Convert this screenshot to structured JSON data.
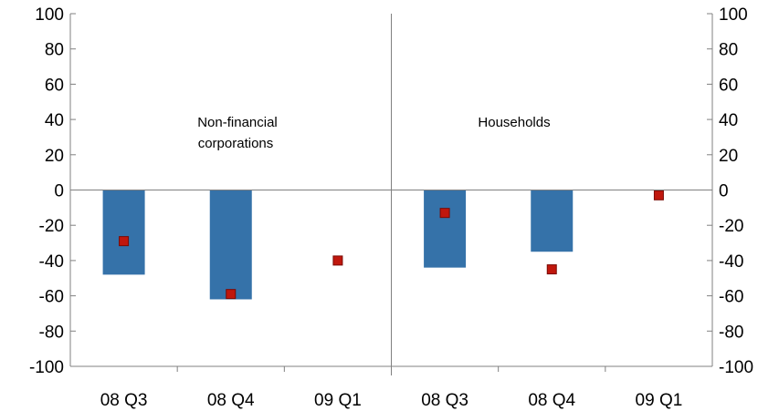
{
  "chart_data": {
    "type": "bar",
    "categories": [
      "08 Q3",
      "08 Q4",
      "09 Q1",
      "08 Q3",
      "08 Q4",
      "09 Q1"
    ],
    "series": [
      {
        "type": "bar",
        "values": [
          -48,
          -62,
          null,
          -44,
          -35,
          null
        ]
      },
      {
        "type": "scatter",
        "values": [
          -29,
          -59,
          -40,
          -13,
          -45,
          -3
        ]
      }
    ],
    "ylim": [
      -100,
      100
    ],
    "yticks": [
      "100",
      "80",
      "60",
      "40",
      "20",
      "0",
      "-20",
      "-40",
      "-60",
      "-80",
      "-100"
    ],
    "yticks_right": [
      "100",
      "80",
      "60",
      "40",
      "20",
      "0",
      "-20",
      "-40",
      "-60",
      "-80",
      "-100"
    ],
    "annotations": {
      "left_panel_line1": "Non-financial",
      "left_panel_line2": "corporations",
      "right_panel": "Households"
    },
    "colors": {
      "bar": "#3572a9",
      "marker": "#c0170d",
      "marker_border": "#7a0a05"
    },
    "grid": false,
    "legend": "none"
  }
}
